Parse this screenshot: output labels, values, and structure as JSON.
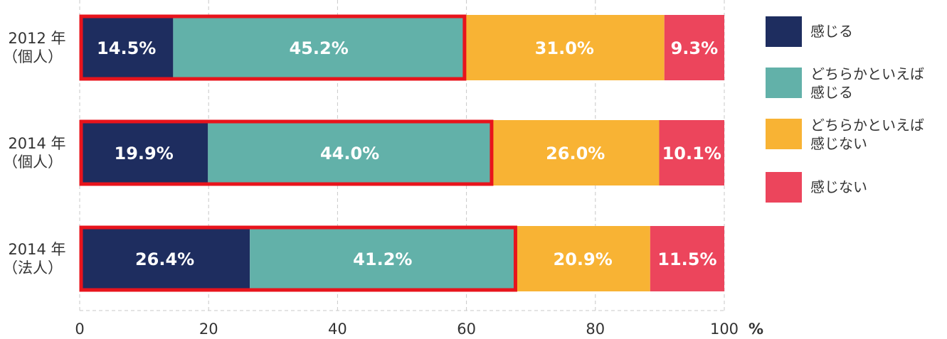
{
  "chart_data": {
    "type": "bar",
    "orientation": "horizontal",
    "stacked": true,
    "categories": [
      [
        "2012 年",
        "（個人）"
      ],
      [
        "2014 年",
        "（個人）"
      ],
      [
        "2014 年",
        "（法人）"
      ]
    ],
    "series": [
      {
        "name": "感じる",
        "color": "#1e2d5f",
        "values": [
          14.5,
          19.9,
          26.4
        ],
        "labels": [
          "14.5%",
          "19.9%",
          "26.4%"
        ]
      },
      {
        "name": "どちらかといえば\n感じる",
        "color": "#62b1a9",
        "values": [
          45.2,
          44.0,
          41.2
        ],
        "labels": [
          "45.2%",
          "44.0%",
          "41.2%"
        ]
      },
      {
        "name": "どちらかといえば\n感じない",
        "color": "#f8b334",
        "values": [
          31.0,
          26.0,
          20.9
        ],
        "labels": [
          "31.0%",
          "26.0%",
          "20.9%"
        ]
      },
      {
        "name": "感じない",
        "color": "#ec455c",
        "values": [
          9.3,
          10.1,
          11.5
        ],
        "labels": [
          "9.3%",
          "10.1%",
          "11.5%"
        ]
      }
    ],
    "highlight": {
      "series_indices": [
        0,
        1
      ],
      "color": "#e8141c"
    },
    "x_ticks": [
      "0",
      "20",
      "40",
      "60",
      "80",
      "100"
    ],
    "x_tick_values": [
      0,
      20,
      40,
      60,
      80,
      100
    ],
    "unit": "%",
    "xlim": [
      0,
      100
    ],
    "grid": true,
    "legend_position": "right"
  }
}
